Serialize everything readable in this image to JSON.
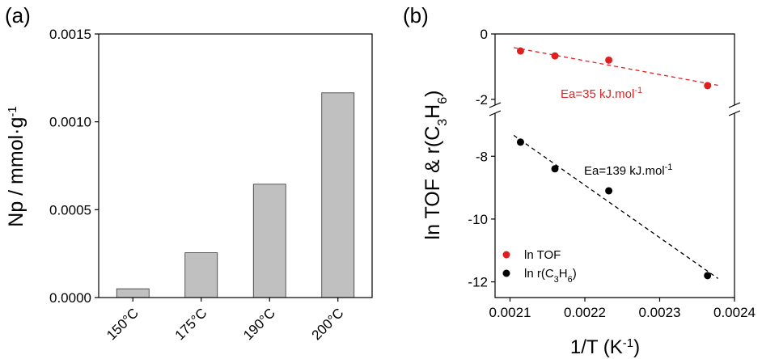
{
  "chart_data": [
    {
      "type": "bar",
      "panel_label": "(a)",
      "categories": [
        "150°C",
        "175°C",
        "190°C",
        "200°C"
      ],
      "values": [
        5e-05,
        0.000255,
        0.000645,
        0.001165
      ],
      "ylabel": "Np / mmol·g",
      "ylabel_sup": "-1",
      "xlabel": "",
      "ylim": [
        0,
        0.0015
      ],
      "yticks": [
        "0.0000",
        "0.0005",
        "0.0010",
        "0.0015"
      ],
      "bar_color": "#c0c0c0",
      "grid": false
    },
    {
      "type": "scatter",
      "panel_label": "(b)",
      "xlabel": "1/T (K",
      "xlabel_sup": "-1",
      "xlabel_tail": ")",
      "ylabel": "ln TOF & r(C",
      "ylabel_sub1": "3",
      "ylabel_mid": "H",
      "ylabel_sub2": "6",
      "ylabel_tail": ")",
      "xlim": [
        0.00208,
        0.0024
      ],
      "xticks": [
        "0.0021",
        "0.0022",
        "0.0023",
        "0.0024"
      ],
      "broken_y_axis": true,
      "ylim_top": [
        -2.3,
        0
      ],
      "ylim_bottom": [
        -12.5,
        -6.5
      ],
      "yticks": [
        "0",
        "-2",
        "-8",
        "-10",
        "-12"
      ],
      "series": [
        {
          "name": "ln TOF",
          "color": "#e02020",
          "x": [
            0.002114,
            0.00216,
            0.002232,
            0.002364
          ],
          "y": [
            -0.52,
            -0.67,
            -0.8,
            -1.58
          ],
          "fit_line": true,
          "annotation": "Ea=35 kJ.mol",
          "annotation_sup": "-1"
        },
        {
          "name": "ln r(C3H6)",
          "name_parts": [
            "ln r(C",
            "3",
            "H",
            "6",
            ")"
          ],
          "color": "#000000",
          "x": [
            0.002114,
            0.00216,
            0.002232,
            0.002364
          ],
          "y": [
            -7.55,
            -8.4,
            -9.1,
            -11.8
          ],
          "fit_line": true,
          "annotation": "Ea=139 kJ.mol",
          "annotation_sup": "-1"
        }
      ],
      "legend_position": "bottom-left",
      "grid": false
    }
  ]
}
